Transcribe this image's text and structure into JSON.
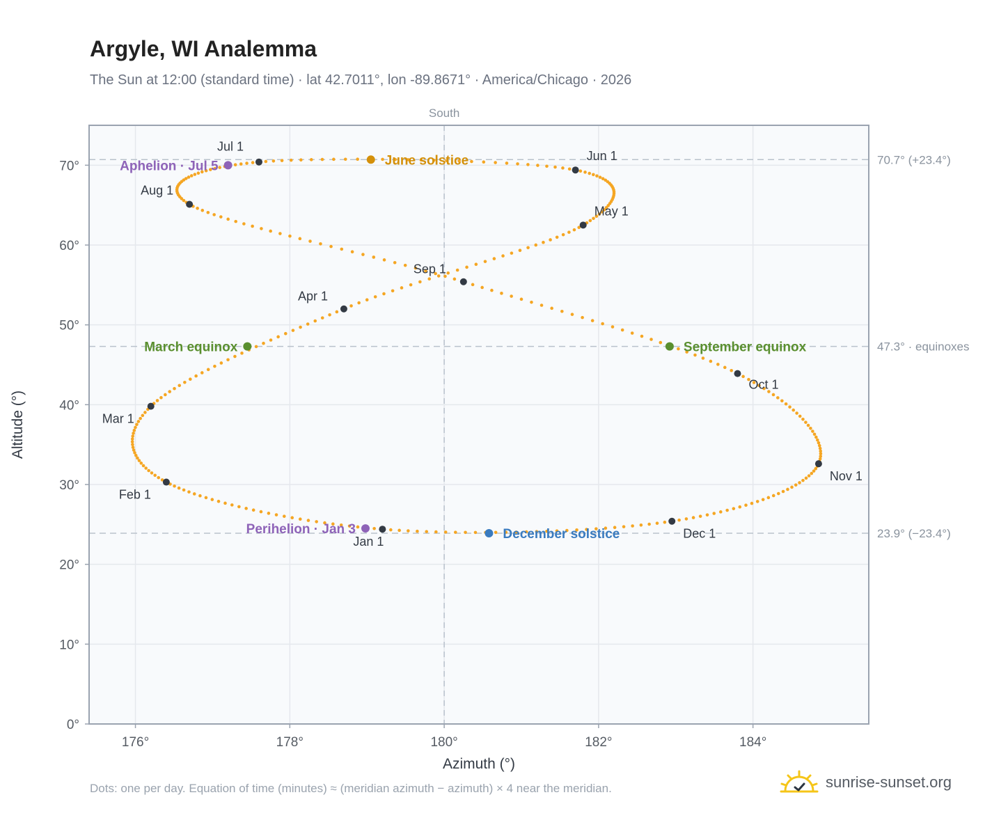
{
  "title": "Argyle, WI Analemma",
  "subtitle": "The Sun at 12:00 (standard time) · lat 42.7011°, lon -89.8671° · America/Chicago · 2026",
  "footer_note": "Dots: one per day. Equation of time (minutes) ≈ (meridian azimuth − azimuth) × 4 near the meridian.",
  "brand": {
    "name": "sunrise-sunset.org",
    "icon": "sun-logo-icon"
  },
  "colors": {
    "path": "#f5a623",
    "month_marker": "#333a44",
    "june_solstice": "#d4900a",
    "december_solstice": "#3a7bbf",
    "equinox": "#5a8f2f",
    "apsis": "#8e63b8",
    "plot_bg": "#f8fafc",
    "grid": "#e5e8ed",
    "reference_line": "#b9c2cc"
  },
  "chart_data": {
    "type": "scatter",
    "xlabel": "Azimuth (°)",
    "ylabel": "Altitude (°)",
    "top_label": "South",
    "xlim": [
      175.4,
      185.5
    ],
    "ylim": [
      0,
      75
    ],
    "x_ticks": [
      176,
      178,
      180,
      182,
      184
    ],
    "x_tick_labels": [
      "176°",
      "178°",
      "180°",
      "182°",
      "184°"
    ],
    "y_ticks": [
      0,
      10,
      20,
      30,
      40,
      50,
      60,
      70
    ],
    "y_tick_labels": [
      "0°",
      "10°",
      "20°",
      "30°",
      "40°",
      "50°",
      "60°",
      "70°"
    ],
    "grid": true,
    "reference_lines": [
      {
        "altitude": 70.7,
        "label": "70.7° (+23.4°)"
      },
      {
        "altitude": 47.3,
        "label": "47.3° · equinoxes"
      },
      {
        "altitude": 23.9,
        "label": "23.9° (−23.4°)"
      }
    ],
    "meridian_azimuth": 180,
    "path_keypoints": [
      {
        "date": "Jan 1",
        "azimuth": 179.2,
        "altitude": 24.4
      },
      {
        "date": "Feb 1",
        "azimuth": 176.4,
        "altitude": 30.3
      },
      {
        "date": "Mar 1",
        "azimuth": 176.2,
        "altitude": 39.8
      },
      {
        "date": "Apr 1",
        "azimuth": 178.7,
        "altitude": 52.0
      },
      {
        "date": "May 1",
        "azimuth": 181.8,
        "altitude": 62.5
      },
      {
        "date": "Jun 1",
        "azimuth": 181.7,
        "altitude": 69.4
      },
      {
        "date": "Jul 1",
        "azimuth": 177.6,
        "altitude": 70.4
      },
      {
        "date": "Aug 1",
        "azimuth": 176.7,
        "altitude": 65.1
      },
      {
        "date": "Sep 1",
        "azimuth": 180.25,
        "altitude": 55.4
      },
      {
        "date": "Oct 1",
        "azimuth": 183.8,
        "altitude": 43.9
      },
      {
        "date": "Nov 1",
        "azimuth": 184.85,
        "altitude": 32.6
      },
      {
        "date": "Dec 1",
        "azimuth": 182.95,
        "altitude": 25.4
      }
    ],
    "month_markers": [
      {
        "label": "Jan 1",
        "azimuth": 179.2,
        "altitude": 24.4
      },
      {
        "label": "Feb 1",
        "azimuth": 176.4,
        "altitude": 30.3
      },
      {
        "label": "Mar 1",
        "azimuth": 176.2,
        "altitude": 39.8
      },
      {
        "label": "Apr 1",
        "azimuth": 178.7,
        "altitude": 52.0
      },
      {
        "label": "May 1",
        "azimuth": 181.8,
        "altitude": 62.5
      },
      {
        "label": "Jun 1",
        "azimuth": 181.7,
        "altitude": 69.4
      },
      {
        "label": "Jul 1",
        "azimuth": 177.6,
        "altitude": 70.4
      },
      {
        "label": "Aug 1",
        "azimuth": 176.7,
        "altitude": 65.1
      },
      {
        "label": "Sep 1",
        "azimuth": 180.25,
        "altitude": 55.4
      },
      {
        "label": "Oct 1",
        "azimuth": 183.8,
        "altitude": 43.9
      },
      {
        "label": "Nov 1",
        "azimuth": 184.85,
        "altitude": 32.6
      },
      {
        "label": "Dec 1",
        "azimuth": 182.95,
        "altitude": 25.4
      }
    ],
    "events": [
      {
        "label": "June solstice",
        "kind": "june_solstice",
        "azimuth": 179.05,
        "altitude": 70.7
      },
      {
        "label": "December solstice",
        "kind": "december_solstice",
        "azimuth": 180.58,
        "altitude": 23.9
      },
      {
        "label": "March equinox",
        "kind": "equinox",
        "azimuth": 177.45,
        "altitude": 47.3
      },
      {
        "label": "September equinox",
        "kind": "equinox",
        "azimuth": 182.92,
        "altitude": 47.3
      },
      {
        "label": "Aphelion · Jul 5",
        "kind": "apsis",
        "azimuth": 177.2,
        "altitude": 70.0
      },
      {
        "label": "Perihelion · Jan 3",
        "kind": "apsis",
        "azimuth": 178.98,
        "altitude": 24.5
      }
    ]
  }
}
